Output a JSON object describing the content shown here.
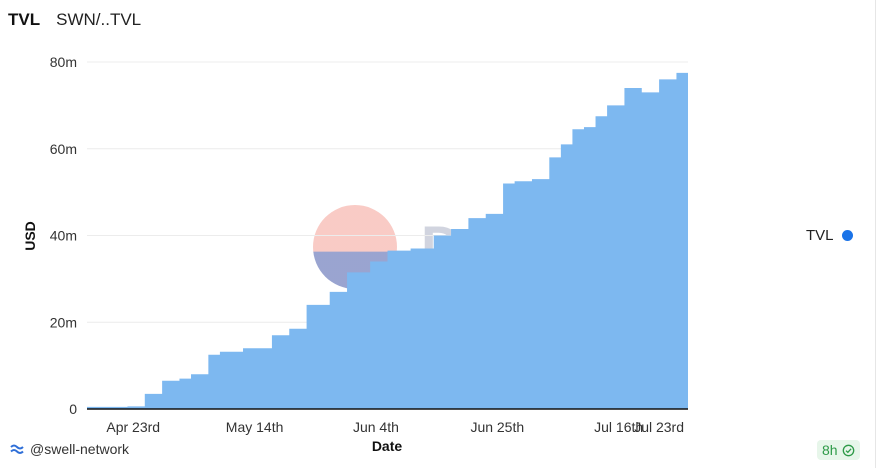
{
  "header": {
    "title": "TVL",
    "subtitle": "SWN/..TVL"
  },
  "legend": {
    "label": "TVL"
  },
  "watermark": {
    "text": "Dune"
  },
  "footer": {
    "owner": "@swell-network",
    "refresh": "8h"
  },
  "colors": {
    "area": "#7db8f0",
    "legend_dot": "#1a73e8",
    "axis": "#111111",
    "grid": "#ececec"
  },
  "icons": {
    "owner": "swell-logo-icon",
    "refresh": "check-circle-icon"
  },
  "chart_data": {
    "type": "area",
    "title": "",
    "xlabel": "Date",
    "ylabel": "USD",
    "ylim": [
      0,
      80000000
    ],
    "y_ticks": [
      {
        "value": 0,
        "label": "0"
      },
      {
        "value": 20000000,
        "label": "20m"
      },
      {
        "value": 40000000,
        "label": "40m"
      },
      {
        "value": 60000000,
        "label": "60m"
      },
      {
        "value": 80000000,
        "label": "80m"
      }
    ],
    "xlim": [
      "2023-04-15",
      "2023-07-28"
    ],
    "x_ticks": [
      {
        "value": "2023-04-23",
        "label": "Apr 23rd"
      },
      {
        "value": "2023-05-14",
        "label": "May 14th"
      },
      {
        "value": "2023-06-04",
        "label": "Jun 4th"
      },
      {
        "value": "2023-06-25",
        "label": "Jun 25th"
      },
      {
        "value": "2023-07-16",
        "label": "Jul 16th"
      },
      {
        "value": "2023-07-23",
        "label": "Jul 23rd"
      }
    ],
    "grid": true,
    "legend_position": "right",
    "series": [
      {
        "name": "TVL",
        "x": [
          "2023-04-15",
          "2023-04-22",
          "2023-04-25",
          "2023-04-28",
          "2023-05-01",
          "2023-05-03",
          "2023-05-06",
          "2023-05-08",
          "2023-05-12",
          "2023-05-17",
          "2023-05-20",
          "2023-05-23",
          "2023-05-27",
          "2023-05-30",
          "2023-06-03",
          "2023-06-06",
          "2023-06-10",
          "2023-06-14",
          "2023-06-17",
          "2023-06-20",
          "2023-06-23",
          "2023-06-26",
          "2023-06-28",
          "2023-07-01",
          "2023-07-04",
          "2023-07-06",
          "2023-07-08",
          "2023-07-10",
          "2023-07-12",
          "2023-07-14",
          "2023-07-17",
          "2023-07-20",
          "2023-07-23",
          "2023-07-26",
          "2023-07-28"
        ],
        "values": [
          500000,
          600000,
          3500000,
          6500000,
          7000000,
          8000000,
          12500000,
          13200000,
          14000000,
          17000000,
          18500000,
          24000000,
          27000000,
          31500000,
          34000000,
          36500000,
          37000000,
          40000000,
          41500000,
          44000000,
          45000000,
          52000000,
          52500000,
          53000000,
          58000000,
          61000000,
          64500000,
          65000000,
          67500000,
          70000000,
          74000000,
          73000000,
          76000000,
          77500000,
          80000000
        ]
      }
    ]
  }
}
